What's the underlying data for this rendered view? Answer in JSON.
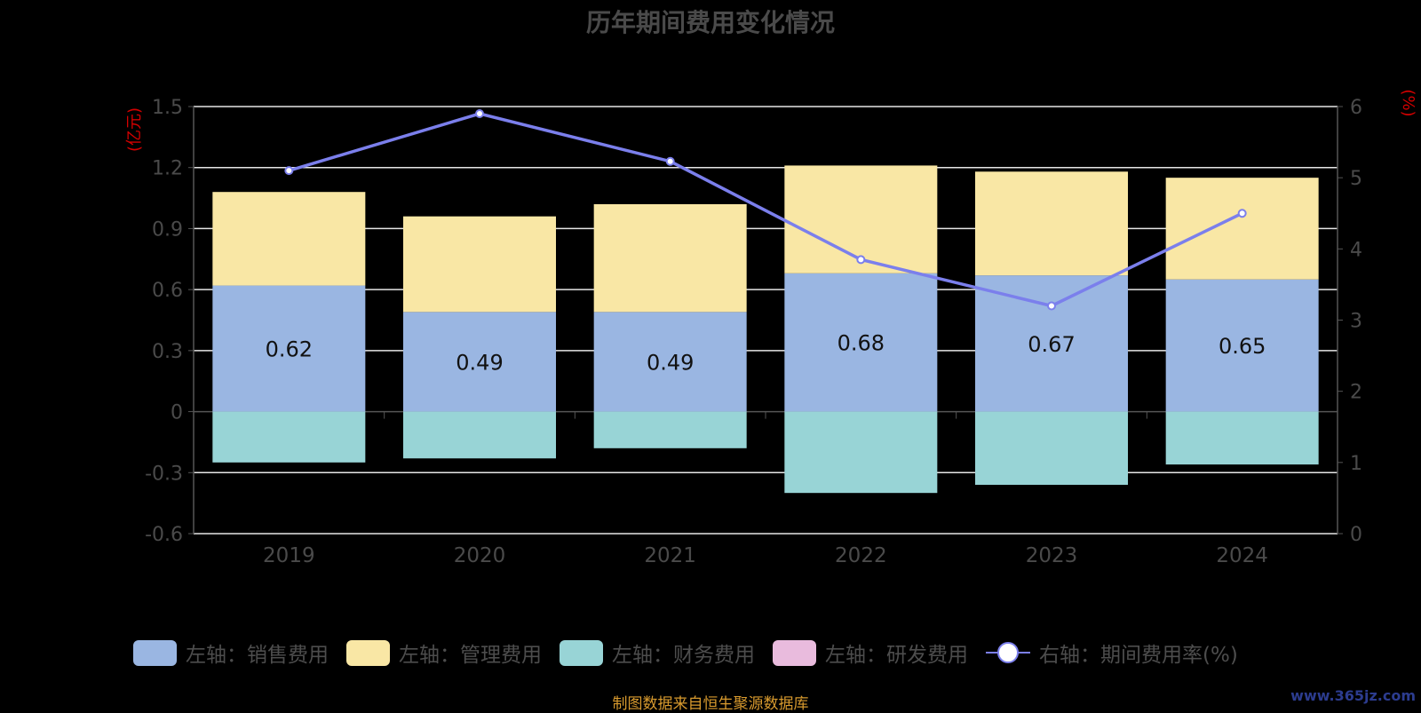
{
  "chart_data": {
    "type": "bar",
    "title": "历年期间费用变化情况",
    "categories": [
      "2019",
      "2020",
      "2021",
      "2022",
      "2023",
      "2024"
    ],
    "y_left": {
      "label": "(亿元)",
      "ylim": [
        -0.6,
        1.5
      ],
      "ticks": [
        "1.5",
        "1.2",
        "0.9",
        "0.6",
        "0.3",
        "0",
        "-0.3",
        "-0.6"
      ]
    },
    "y_right": {
      "label": "(%)",
      "ylim": [
        0,
        6
      ],
      "ticks": [
        "6",
        "5",
        "4",
        "3",
        "2",
        "1",
        "0"
      ]
    },
    "series": [
      {
        "name": "左轴：销售费用",
        "axis": "left",
        "stack": "total",
        "color": "#9ab6e2",
        "values": [
          0.62,
          0.49,
          0.49,
          0.68,
          0.67,
          0.65
        ],
        "labels": [
          "0.62",
          "0.49",
          "0.49",
          "0.68",
          "0.67",
          "0.65"
        ]
      },
      {
        "name": "左轴：管理费用",
        "axis": "left",
        "stack": "total",
        "color": "#f9e7a5",
        "values": [
          0.46,
          0.47,
          0.53,
          0.53,
          0.51,
          0.5
        ]
      },
      {
        "name": "左轴：财务费用",
        "axis": "left",
        "stack": "total",
        "color": "#98d4d6",
        "values": [
          -0.25,
          -0.23,
          -0.18,
          -0.4,
          -0.36,
          -0.26
        ]
      },
      {
        "name": "左轴：研发费用",
        "axis": "left",
        "stack": "total",
        "color": "#e9bbdd",
        "values": [
          0,
          0,
          0,
          0,
          0,
          0
        ]
      },
      {
        "name": "右轴：期间费用率(%)",
        "axis": "right",
        "type": "line",
        "color": "#7b7fec",
        "values": [
          5.1,
          5.9,
          5.23,
          3.85,
          3.2,
          4.5
        ]
      }
    ],
    "grid": true,
    "legend_position": "bottom"
  },
  "source_note": "制图数据来自恒生聚源数据库",
  "watermark": "www.365jz.com"
}
